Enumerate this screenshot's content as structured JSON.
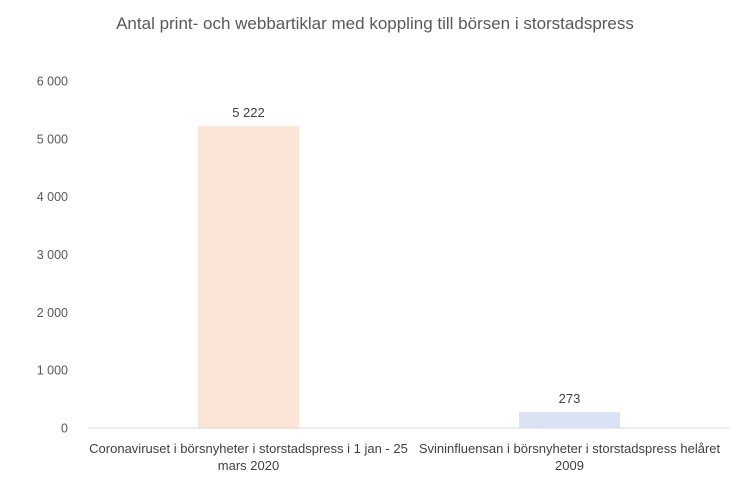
{
  "chart_data": {
    "type": "bar",
    "title": "Antal print- och webbartiklar med koppling till börsen i storstadspress",
    "categories": [
      "Coronaviruset i börsnyheter i storstadspress i 1 jan - 25 mars 2020",
      "Svininfluensan i börsnyheter i storstadspress helåret 2009"
    ],
    "category_lines": [
      [
        "Coronaviruset i börsnyheter i storstadspress i 1 jan - 25",
        "mars 2020"
      ],
      [
        "Svininfluensan i börsnyheter i storstadspress helåret",
        "2009"
      ]
    ],
    "values": [
      5222,
      273
    ],
    "value_labels": [
      "5 222",
      "273"
    ],
    "bar_colors": [
      "#fbe5d6",
      "#dae3f3"
    ],
    "ylim": [
      0,
      6000
    ],
    "yticks": [
      0,
      1000,
      2000,
      3000,
      4000,
      5000,
      6000
    ],
    "ytick_labels": [
      "0",
      "1 000",
      "2 000",
      "3 000",
      "4 000",
      "5 000",
      "6 000"
    ],
    "grid": false,
    "legend": "none"
  }
}
